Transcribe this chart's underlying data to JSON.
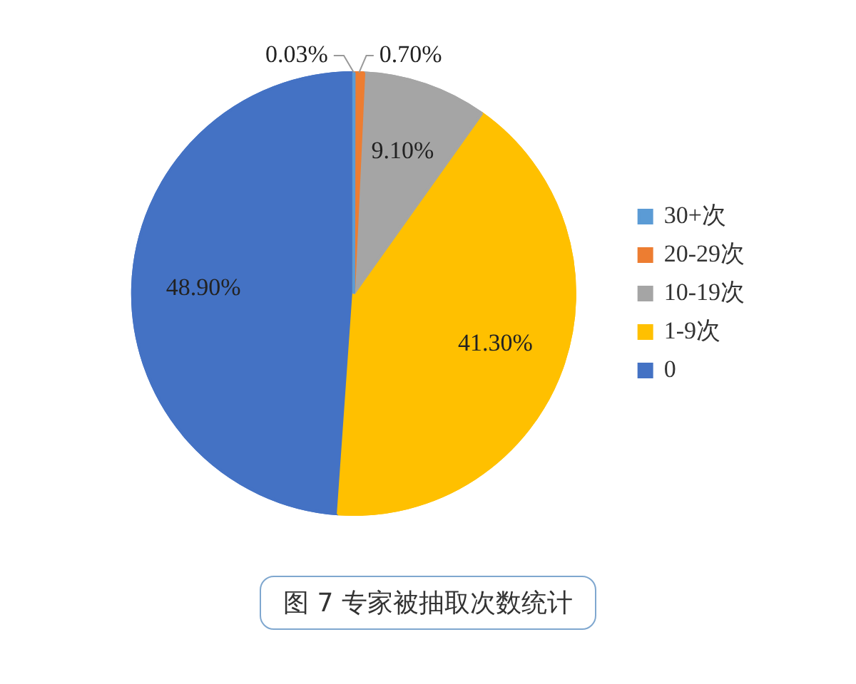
{
  "chart_data": {
    "type": "pie",
    "title": "图 7 专家被抽取次数统计",
    "categories": [
      "30+次",
      "20-29次",
      "10-19次",
      "1-9次",
      "0"
    ],
    "values": [
      0.03,
      0.7,
      9.1,
      41.3,
      48.9
    ],
    "colors": [
      "#5b9bd5",
      "#ed7d31",
      "#a5a5a5",
      "#ffc000",
      "#4472c4"
    ],
    "value_labels": [
      "0.03%",
      "0.70%",
      "9.10%",
      "41.30%",
      "48.90%"
    ],
    "legend": "right"
  }
}
